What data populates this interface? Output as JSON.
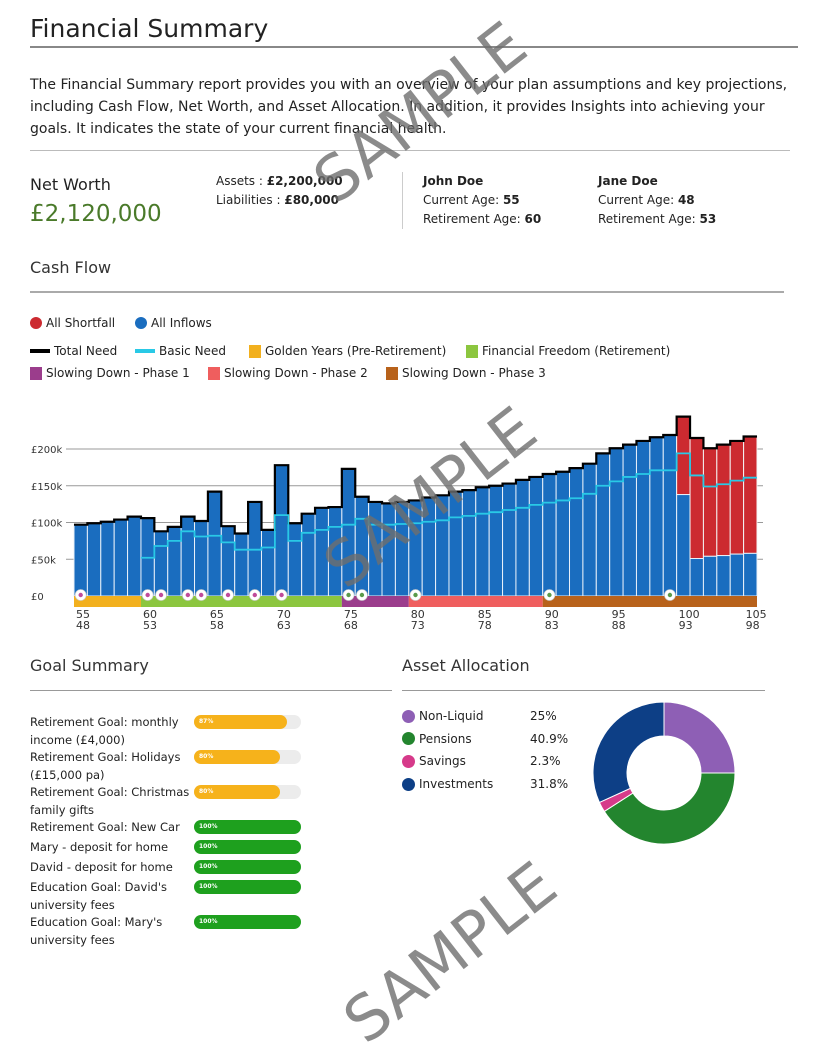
{
  "title": "Financial Summary",
  "intro": "The Financial Summary report provides you with an overview of your plan assumptions and key projections, including Cash Flow, Net Worth, and Asset Allocation. In addition, it provides Insights into achieving your goals. It indicates the state of your current financial health.",
  "net_worth": {
    "label": "Net Worth",
    "value": "£2,120,000",
    "assets_label": "Assets : ",
    "assets": "£2,200,000",
    "liabilities_label": "Liabilities : ",
    "liabilities": "£80,000"
  },
  "people": [
    {
      "name": "John Doe",
      "current_label": "Current Age: ",
      "current": "55",
      "retire_label": "Retirement Age: ",
      "retire": "60"
    },
    {
      "name": "Jane Doe",
      "current_label": "Current Age: ",
      "current": "48",
      "retire_label": "Retirement Age: ",
      "retire": "53"
    }
  ],
  "cash_flow_title": "Cash Flow",
  "legend": {
    "shortfall": "All Shortfall",
    "inflows": "All Inflows",
    "total_need": "Total Need",
    "basic_need": "Basic Need",
    "golden": "Golden Years (Pre-Retirement)",
    "freedom": "Financial Freedom (Retirement)",
    "phase1": "Slowing Down - Phase 1",
    "phase2": "Slowing Down - Phase 2",
    "phase3": "Slowing Down - Phase 3"
  },
  "colors": {
    "inflow": "#1a6dbf",
    "shortfall": "#cc2a30",
    "total": "#000000",
    "basic": "#29c9e6",
    "golden": "#f2b01e",
    "freedom": "#8cc63f",
    "phase1": "#9b3d8c",
    "phase2": "#ef5e5e",
    "phase3": "#b8621b",
    "networth": "#4a7a2a"
  },
  "chart_data": {
    "type": "bar",
    "title": "Cash Flow",
    "ylim": [
      0,
      200
    ],
    "yticks": [
      "£0",
      "£50k",
      "£100k",
      "£150k",
      "£200k"
    ],
    "ytick_values": [
      0,
      50,
      100,
      150,
      200
    ],
    "x_primary": [
      "55",
      "60",
      "65",
      "70",
      "75",
      "80",
      "85",
      "90",
      "95",
      "100",
      "105"
    ],
    "x_secondary": [
      "48",
      "53",
      "58",
      "63",
      "68",
      "73",
      "78",
      "83",
      "88",
      "93",
      "98"
    ],
    "ages": [
      55,
      56,
      57,
      58,
      59,
      60,
      61,
      62,
      63,
      64,
      65,
      66,
      67,
      68,
      69,
      70,
      71,
      72,
      73,
      74,
      75,
      76,
      77,
      78,
      79,
      80,
      81,
      82,
      83,
      84,
      85,
      86,
      87,
      88,
      89,
      90,
      91,
      92,
      93,
      94,
      95,
      96,
      97,
      98,
      99,
      100,
      101,
      102,
      103,
      104,
      105
    ],
    "total_need": [
      97,
      99,
      101,
      104,
      108,
      106,
      88,
      94,
      108,
      102,
      142,
      95,
      85,
      128,
      90,
      178,
      99,
      112,
      120,
      121,
      173,
      135,
      128,
      126,
      128,
      130,
      134,
      137,
      142,
      144,
      148,
      150,
      153,
      158,
      162,
      166,
      169,
      174,
      180,
      194,
      201,
      206,
      211,
      216,
      219,
      244,
      215,
      201,
      206,
      211,
      217
    ],
    "inflows": [
      97,
      99,
      101,
      104,
      108,
      106,
      88,
      94,
      108,
      102,
      142,
      95,
      85,
      128,
      90,
      178,
      99,
      112,
      120,
      121,
      173,
      135,
      128,
      126,
      128,
      130,
      134,
      137,
      142,
      144,
      148,
      150,
      153,
      158,
      162,
      166,
      169,
      174,
      180,
      194,
      201,
      206,
      211,
      216,
      219,
      138,
      51,
      54,
      55,
      57,
      58
    ],
    "basic_need": [
      null,
      null,
      null,
      null,
      null,
      52,
      68,
      75,
      88,
      81,
      82,
      73,
      63,
      63,
      66,
      110,
      75,
      86,
      90,
      94,
      97,
      105,
      97,
      97,
      98,
      99,
      101,
      103,
      107,
      109,
      112,
      114,
      117,
      120,
      124,
      127,
      130,
      133,
      139,
      150,
      156,
      162,
      166,
      171,
      171,
      194,
      164,
      149,
      152,
      157,
      161
    ],
    "phases": [
      {
        "key": "golden",
        "from": 55,
        "to": 59
      },
      {
        "key": "freedom",
        "from": 60,
        "to": 74
      },
      {
        "key": "phase1",
        "from": 75,
        "to": 79
      },
      {
        "key": "phase2",
        "from": 80,
        "to": 89
      },
      {
        "key": "phase3",
        "from": 90,
        "to": 105
      }
    ],
    "events": [
      55,
      60,
      61,
      63,
      64,
      66,
      68,
      70,
      75,
      76,
      80,
      90,
      99
    ]
  },
  "goal_summary": {
    "title": "Goal Summary",
    "goals": [
      {
        "label": "Retirement Goal: monthly income (£4,000)",
        "pct": 87,
        "pct_label": "87%",
        "status": "partial"
      },
      {
        "label": "Retirement Goal: Holidays (£15,000 pa)",
        "pct": 80,
        "pct_label": "80%",
        "status": "partial"
      },
      {
        "label": "Retirement Goal: Christmas family gifts",
        "pct": 80,
        "pct_label": "80%",
        "status": "partial"
      },
      {
        "label": "Retirement Goal: New Car",
        "pct": 100,
        "pct_label": "100%",
        "status": "full"
      },
      {
        "label": "Mary - deposit for home",
        "pct": 100,
        "pct_label": "100%",
        "status": "full"
      },
      {
        "label": "David - deposit for home",
        "pct": 100,
        "pct_label": "100%",
        "status": "full"
      },
      {
        "label": "Education Goal: David's university fees",
        "pct": 100,
        "pct_label": "100%",
        "status": "full"
      },
      {
        "label": "Education Goal: Mary's university fees",
        "pct": 100,
        "pct_label": "100%",
        "status": "full"
      }
    ]
  },
  "asset_allocation": {
    "title": "Asset Allocation",
    "items": [
      {
        "label": "Non-Liquid",
        "value": 25,
        "value_label": "25%",
        "color": "#8e5fb5"
      },
      {
        "label": "Pensions",
        "value": 40.9,
        "value_label": "40.9%",
        "color": "#23852e"
      },
      {
        "label": "Savings",
        "value": 2.3,
        "value_label": "2.3%",
        "color": "#d63a8a"
      },
      {
        "label": "Investments",
        "value": 31.8,
        "value_label": "31.8%",
        "color": "#0d3f86"
      }
    ]
  },
  "watermark": "SAMPLE"
}
